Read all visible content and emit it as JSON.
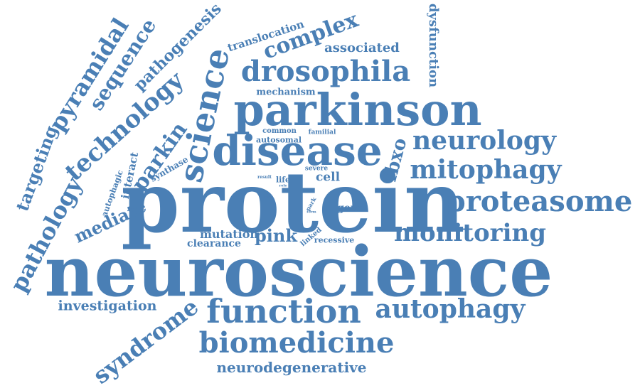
{
  "color": "#4a7fb5",
  "words": {
    "neuroscience": "neuroscience",
    "protein": "protein",
    "parkinson": "parkinson",
    "disease": "disease",
    "drosophila": "drosophila",
    "function": "function",
    "autophagy": "autophagy",
    "biomedicine": "biomedicine",
    "neurodegenerative": "neurodegenerative",
    "monitoring": "monitoring",
    "proteasome": "proteasome",
    "mitophagy": "mitophagy",
    "neurology": "neurology",
    "investigation": "investigation",
    "mediate": "mediate",
    "syndrome": "syndrome",
    "pathology": "pathology",
    "targeting": "targeting",
    "technology": "technology",
    "pyramidal": "pyramidal",
    "sequence": "sequence",
    "pathogenesis": "pathogenesis",
    "science": "science",
    "parkin": "parkin",
    "complex": "complex",
    "translocation": "translocation",
    "associated": "associated",
    "dysfunction": "dysfunction",
    "mechanism": "mechanism",
    "common": "common",
    "familial": "familial",
    "autosomal": "autosomal",
    "fbxo": "fbxo",
    "cell": "cell",
    "severe": "severe",
    "life": "life",
    "result": "result",
    "role": "role",
    "synthase": "synthase",
    "interact": "interact",
    "autophagic": "autophagic",
    "gene": "gene",
    "park": "park",
    "form": "form",
    "loss": "loss",
    "pink": "pink",
    "mutation": "mutation",
    "clearance": "clearance",
    "linked": "linked",
    "recessive": "recessive"
  }
}
